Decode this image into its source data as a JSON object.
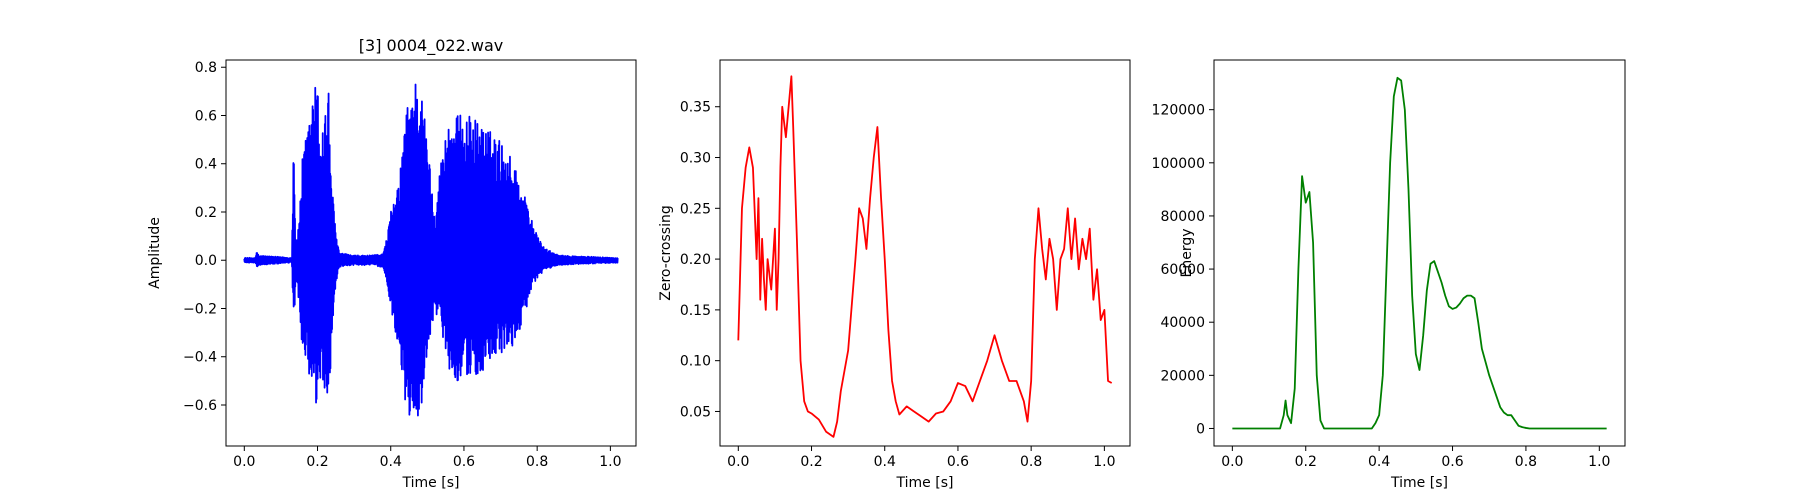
{
  "chart_data": [
    {
      "type": "line",
      "title": "[3] 0004_022.wav",
      "xlabel": "Time [s]",
      "ylabel": "Amplitude",
      "color": "#0000ff",
      "xlim": [
        -0.05,
        1.07
      ],
      "ylim": [
        -0.77,
        0.83
      ],
      "xticks": [
        0.0,
        0.2,
        0.4,
        0.6,
        0.8,
        1.0
      ],
      "xticklabels": [
        "0.0",
        "0.2",
        "0.4",
        "0.6",
        "0.8",
        "1.0"
      ],
      "yticks": [
        -0.6,
        -0.4,
        -0.2,
        0.0,
        0.2,
        0.4,
        0.6,
        0.8
      ],
      "yticklabels": [
        "−0.6",
        "−0.4",
        "−0.2",
        "0.0",
        "0.2",
        "0.4",
        "0.6",
        "0.8"
      ],
      "envelope": {
        "t": [
          0.0,
          0.03,
          0.035,
          0.04,
          0.13,
          0.135,
          0.14,
          0.145,
          0.16,
          0.18,
          0.19,
          0.2,
          0.21,
          0.23,
          0.24,
          0.25,
          0.26,
          0.3,
          0.35,
          0.38,
          0.39,
          0.4,
          0.42,
          0.44,
          0.46,
          0.48,
          0.5,
          0.52,
          0.54,
          0.56,
          0.58,
          0.6,
          0.63,
          0.66,
          0.7,
          0.74,
          0.78,
          0.8,
          0.82,
          0.86,
          1.02
        ],
        "upper": [
          0.01,
          0.01,
          0.04,
          0.02,
          0.01,
          0.6,
          0.1,
          0.08,
          0.45,
          0.6,
          0.74,
          0.72,
          0.55,
          0.72,
          0.3,
          0.12,
          0.03,
          0.02,
          0.02,
          0.03,
          0.1,
          0.2,
          0.3,
          0.6,
          0.76,
          0.76,
          0.5,
          0.2,
          0.45,
          0.6,
          0.6,
          0.61,
          0.59,
          0.55,
          0.5,
          0.4,
          0.2,
          0.1,
          0.05,
          0.02,
          0.01
        ],
        "lower": [
          -0.01,
          -0.01,
          -0.03,
          -0.02,
          -0.01,
          -0.33,
          -0.1,
          -0.1,
          -0.4,
          -0.55,
          -0.65,
          -0.6,
          -0.5,
          -0.62,
          -0.3,
          -0.1,
          -0.03,
          -0.02,
          -0.02,
          -0.03,
          -0.1,
          -0.2,
          -0.35,
          -0.6,
          -0.7,
          -0.65,
          -0.4,
          -0.2,
          -0.3,
          -0.45,
          -0.5,
          -0.5,
          -0.48,
          -0.46,
          -0.4,
          -0.35,
          -0.15,
          -0.08,
          -0.04,
          -0.02,
          -0.01
        ]
      }
    },
    {
      "type": "line",
      "title": "",
      "xlabel": "Time [s]",
      "ylabel": "Zero-crossing",
      "color": "#ff0000",
      "xlim": [
        -0.05,
        1.07
      ],
      "ylim": [
        0.016,
        0.396
      ],
      "xticks": [
        0.0,
        0.2,
        0.4,
        0.6,
        0.8,
        1.0
      ],
      "xticklabels": [
        "0.0",
        "0.2",
        "0.4",
        "0.6",
        "0.8",
        "1.0"
      ],
      "yticks": [
        0.05,
        0.1,
        0.15,
        0.2,
        0.25,
        0.3,
        0.35
      ],
      "yticklabels": [
        "0.05",
        "0.10",
        "0.15",
        "0.20",
        "0.25",
        "0.30",
        "0.35"
      ],
      "x": [
        0.0,
        0.01,
        0.02,
        0.03,
        0.04,
        0.05,
        0.055,
        0.06,
        0.065,
        0.07,
        0.075,
        0.08,
        0.09,
        0.1,
        0.105,
        0.11,
        0.115,
        0.12,
        0.13,
        0.14,
        0.145,
        0.15,
        0.16,
        0.17,
        0.18,
        0.19,
        0.2,
        0.22,
        0.24,
        0.26,
        0.27,
        0.28,
        0.3,
        0.32,
        0.33,
        0.34,
        0.35,
        0.36,
        0.37,
        0.38,
        0.39,
        0.4,
        0.41,
        0.42,
        0.43,
        0.44,
        0.46,
        0.48,
        0.5,
        0.52,
        0.54,
        0.56,
        0.58,
        0.6,
        0.62,
        0.64,
        0.66,
        0.68,
        0.7,
        0.72,
        0.74,
        0.76,
        0.78,
        0.79,
        0.8,
        0.81,
        0.82,
        0.83,
        0.84,
        0.85,
        0.86,
        0.87,
        0.88,
        0.89,
        0.9,
        0.91,
        0.92,
        0.93,
        0.94,
        0.95,
        0.96,
        0.97,
        0.98,
        0.99,
        1.0,
        1.01,
        1.02
      ],
      "y": [
        0.12,
        0.25,
        0.29,
        0.31,
        0.29,
        0.2,
        0.26,
        0.16,
        0.22,
        0.18,
        0.15,
        0.2,
        0.17,
        0.23,
        0.15,
        0.2,
        0.29,
        0.35,
        0.32,
        0.36,
        0.38,
        0.33,
        0.22,
        0.1,
        0.06,
        0.05,
        0.048,
        0.042,
        0.03,
        0.025,
        0.04,
        0.07,
        0.11,
        0.2,
        0.25,
        0.24,
        0.21,
        0.26,
        0.3,
        0.33,
        0.26,
        0.2,
        0.13,
        0.08,
        0.06,
        0.047,
        0.055,
        0.05,
        0.045,
        0.04,
        0.048,
        0.05,
        0.06,
        0.078,
        0.075,
        0.06,
        0.08,
        0.1,
        0.125,
        0.1,
        0.08,
        0.08,
        0.06,
        0.04,
        0.08,
        0.2,
        0.25,
        0.21,
        0.18,
        0.22,
        0.2,
        0.15,
        0.2,
        0.21,
        0.25,
        0.2,
        0.24,
        0.19,
        0.22,
        0.2,
        0.23,
        0.16,
        0.19,
        0.14,
        0.15,
        0.08,
        0.078
      ]
    },
    {
      "type": "line",
      "title": "",
      "xlabel": "Time [s]",
      "ylabel": "Energy",
      "color": "#008000",
      "xlim": [
        -0.05,
        1.07
      ],
      "ylim": [
        -6600,
        138700
      ],
      "xticks": [
        0.0,
        0.2,
        0.4,
        0.6,
        0.8,
        1.0
      ],
      "xticklabels": [
        "0.0",
        "0.2",
        "0.4",
        "0.6",
        "0.8",
        "1.0"
      ],
      "yticks": [
        0,
        20000,
        40000,
        60000,
        80000,
        100000,
        120000
      ],
      "yticklabels": [
        "0",
        "20000",
        "40000",
        "60000",
        "80000",
        "100000",
        "120000"
      ],
      "x": [
        0.0,
        0.13,
        0.14,
        0.145,
        0.15,
        0.16,
        0.17,
        0.18,
        0.19,
        0.2,
        0.21,
        0.22,
        0.23,
        0.24,
        0.25,
        0.38,
        0.39,
        0.4,
        0.41,
        0.42,
        0.43,
        0.44,
        0.45,
        0.46,
        0.47,
        0.48,
        0.49,
        0.5,
        0.51,
        0.52,
        0.53,
        0.54,
        0.55,
        0.56,
        0.57,
        0.58,
        0.59,
        0.6,
        0.61,
        0.62,
        0.63,
        0.64,
        0.65,
        0.66,
        0.67,
        0.68,
        0.69,
        0.7,
        0.71,
        0.72,
        0.73,
        0.74,
        0.75,
        0.76,
        0.77,
        0.78,
        0.79,
        0.8,
        0.81,
        0.82,
        0.83,
        1.02
      ],
      "y": [
        0,
        0,
        5000,
        10500,
        5000,
        2000,
        15000,
        60000,
        95000,
        85000,
        89000,
        70000,
        20000,
        3000,
        0,
        0,
        2000,
        5000,
        20000,
        60000,
        100000,
        125000,
        132000,
        131000,
        120000,
        90000,
        50000,
        28000,
        22000,
        35000,
        52000,
        62000,
        63000,
        59000,
        55000,
        50000,
        46000,
        45000,
        45500,
        47000,
        49000,
        50000,
        50000,
        49000,
        40000,
        30000,
        25000,
        20000,
        16000,
        12000,
        8000,
        6000,
        5000,
        5000,
        3000,
        1000,
        500,
        200,
        0,
        0,
        0,
        0
      ]
    }
  ]
}
